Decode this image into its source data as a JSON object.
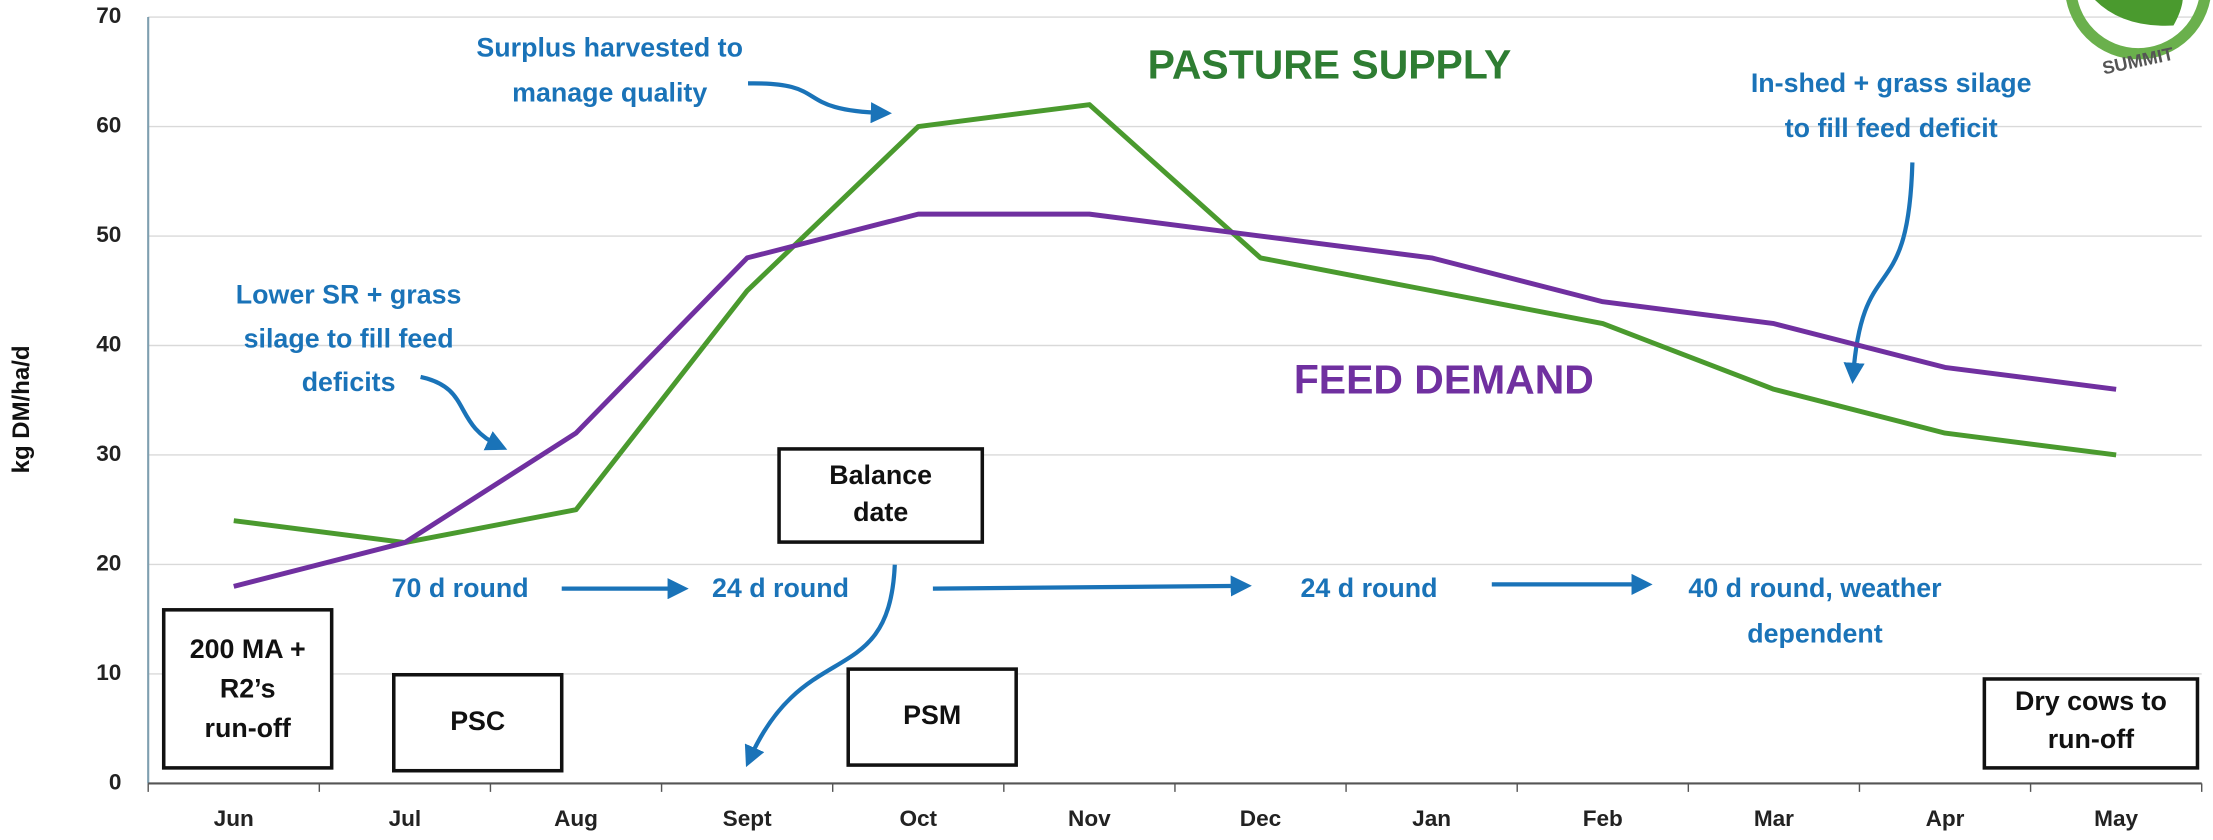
{
  "chart_data": {
    "type": "line",
    "y_label": "kg DM/ha/d",
    "categories": [
      "Jun",
      "Jul",
      "Aug",
      "Sept",
      "Oct",
      "Nov",
      "Dec",
      "Jan",
      "Feb",
      "Mar",
      "Apr",
      "May"
    ],
    "series": [
      {
        "name": "PASTURE SUPPLY",
        "color": "#4a9a2e",
        "label_color": "#2e7d32",
        "values": [
          24,
          22,
          25,
          45,
          60,
          62,
          48,
          45,
          42,
          36,
          32,
          30
        ]
      },
      {
        "name": "FEED DEMAND",
        "color": "#7030a0",
        "label_color": "#7030a0",
        "values": [
          18,
          22,
          32,
          48,
          52,
          52,
          50,
          48,
          44,
          42,
          38,
          36
        ]
      }
    ],
    "ylim": [
      0,
      70
    ],
    "yticks": [
      0,
      10,
      20,
      30,
      40,
      50,
      60,
      70
    ],
    "grid": true,
    "annotations": [
      {
        "lines": [
          "Surplus harvested to",
          "manage quality"
        ]
      },
      {
        "lines": [
          "Lower SR + grass",
          "silage to fill feed",
          "deficits"
        ]
      },
      {
        "lines": [
          "In-shed + grass silage",
          "to fill feed deficit"
        ]
      },
      {
        "lines": [
          "70 d round"
        ]
      },
      {
        "lines": [
          "24 d round"
        ]
      },
      {
        "lines": [
          "24 d round"
        ]
      },
      {
        "lines": [
          "40 d round, weather",
          "dependent"
        ]
      }
    ],
    "boxes": [
      {
        "lines": [
          "Balance",
          "date"
        ]
      },
      {
        "lines": [
          "200 MA +",
          "R2’s",
          "run-off"
        ]
      },
      {
        "lines": [
          "PSC"
        ]
      },
      {
        "lines": [
          "PSM"
        ]
      },
      {
        "lines": [
          "Dry cows to",
          "run-off"
        ]
      }
    ],
    "logo_text": "SUMMIT"
  }
}
